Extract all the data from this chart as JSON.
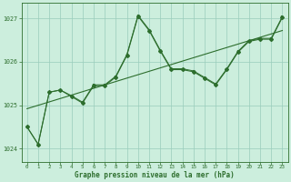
{
  "xlabel": "Graphe pression niveau de la mer (hPa)",
  "xlim": [
    -0.5,
    23.5
  ],
  "ylim": [
    1023.7,
    1027.35
  ],
  "yticks": [
    1024,
    1025,
    1026,
    1027
  ],
  "xticks": [
    0,
    1,
    2,
    3,
    4,
    5,
    6,
    7,
    8,
    9,
    10,
    11,
    12,
    13,
    14,
    15,
    16,
    17,
    18,
    19,
    20,
    21,
    22,
    23
  ],
  "background_color": "#cceedd",
  "grid_color": "#99ccbb",
  "line_color": "#2d6e2d",
  "main_line": {
    "x": [
      0,
      1,
      2,
      3,
      4,
      5,
      6,
      7,
      8,
      9,
      10,
      11,
      12,
      13,
      14,
      15,
      16,
      17,
      18,
      19,
      20,
      21,
      22,
      23
    ],
    "y": [
      1024.5,
      1024.1,
      1025.3,
      1025.35,
      1025.2,
      1025.05,
      1025.45,
      1025.45,
      1025.65,
      1026.15,
      1027.05,
      1026.72,
      1026.25,
      1025.82,
      1025.82,
      1025.77,
      1025.62,
      1025.47,
      1025.82,
      1026.22,
      1026.47,
      1026.52,
      1026.52,
      1027.02
    ]
  },
  "second_line": {
    "x": [
      0,
      1,
      2,
      3,
      4,
      5,
      6,
      7,
      8,
      9,
      10,
      11,
      12,
      13,
      14,
      15,
      16,
      17,
      18,
      19,
      20,
      21,
      22,
      23
    ],
    "y": [
      1024.5,
      1024.1,
      1025.3,
      1025.35,
      1025.22,
      1025.07,
      1025.47,
      1025.47,
      1025.67,
      1026.17,
      1027.07,
      1026.74,
      1026.27,
      1025.84,
      1025.84,
      1025.79,
      1025.64,
      1025.49,
      1025.84,
      1026.24,
      1026.49,
      1026.54,
      1026.54,
      1027.04
    ]
  },
  "trend_line": {
    "x": [
      0,
      23
    ],
    "y": [
      1024.92,
      1026.72
    ]
  }
}
